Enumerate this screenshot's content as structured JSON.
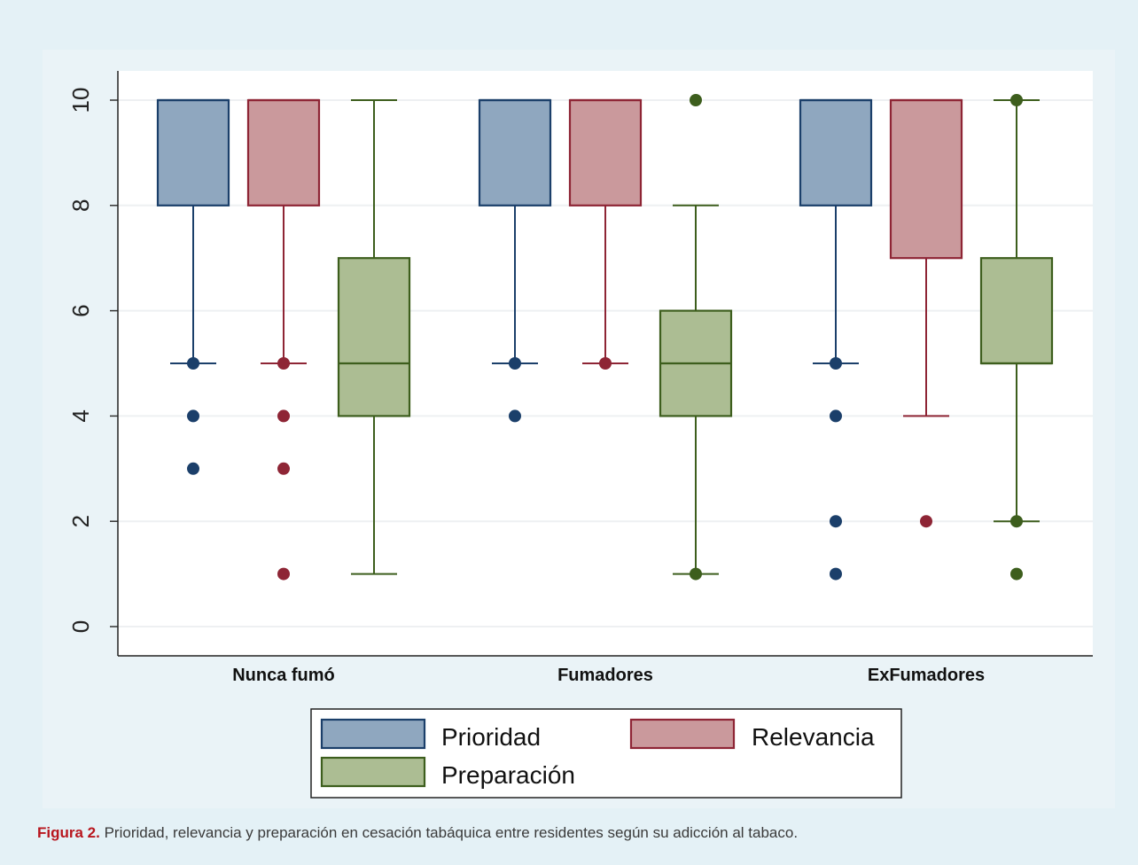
{
  "chart_data": {
    "type": "boxplot",
    "y_ticks": [
      "0",
      "2",
      "4",
      "6",
      "8",
      "10"
    ],
    "ylim": [
      0,
      10
    ],
    "grid": true,
    "legend_position": "bottom-center",
    "categories": [
      "Nunca fumó",
      "Fumadores",
      "ExFumadores"
    ],
    "series": [
      {
        "name": "Prioridad",
        "color": "#8fa7bf",
        "edge": "#1b3f6a",
        "boxes": [
          {
            "whisker_low": 5,
            "q1": 8,
            "median": 10,
            "q3": 10,
            "whisker_high": 10,
            "outliers": [
              5,
              4,
              3
            ]
          },
          {
            "whisker_low": 5,
            "q1": 8,
            "median": 10,
            "q3": 10,
            "whisker_high": 10,
            "outliers": [
              5,
              4
            ]
          },
          {
            "whisker_low": 5,
            "q1": 8,
            "median": 10,
            "q3": 10,
            "whisker_high": 10,
            "outliers": [
              5,
              4,
              2,
              1
            ]
          }
        ]
      },
      {
        "name": "Relevancia",
        "color": "#ca999c",
        "edge": "#8e2535",
        "boxes": [
          {
            "whisker_low": 5,
            "q1": 8,
            "median": 10,
            "q3": 10,
            "whisker_high": 10,
            "outliers": [
              5,
              4,
              3,
              1
            ]
          },
          {
            "whisker_low": 5,
            "q1": 8,
            "median": 10,
            "q3": 10,
            "whisker_high": 10,
            "outliers": [
              5
            ]
          },
          {
            "whisker_low": 4,
            "q1": 7,
            "median": 10,
            "q3": 10,
            "whisker_high": 10,
            "outliers": [
              2
            ]
          }
        ]
      },
      {
        "name": "Preparación",
        "color": "#acbd93",
        "edge": "#3d5e1d",
        "boxes": [
          {
            "whisker_low": 1,
            "q1": 4,
            "median": 5,
            "q3": 7,
            "whisker_high": 10,
            "outliers": []
          },
          {
            "whisker_low": 1,
            "q1": 4,
            "median": 5,
            "q3": 6,
            "whisker_high": 8,
            "outliers": [
              10,
              1
            ]
          },
          {
            "whisker_low": 2,
            "q1": 5,
            "median": 5,
            "q3": 7,
            "whisker_high": 10,
            "outliers": [
              10,
              2,
              1
            ]
          }
        ]
      }
    ]
  },
  "caption": {
    "label": "Figura 2.",
    "text": " Prioridad, relevancia y preparación en cesación tabáquica entre residentes según su adicción al tabaco."
  }
}
